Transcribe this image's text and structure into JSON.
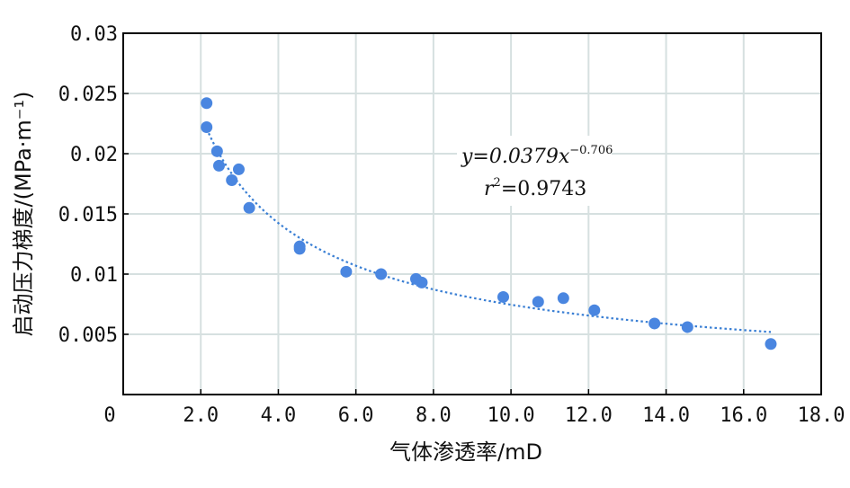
{
  "chart_data": {
    "type": "scatter",
    "xlabel": "气体渗透率/mD",
    "ylabel": "启动压力梯度/(MPa·m⁻¹)",
    "xlim": [
      0,
      18
    ],
    "ylim": [
      0,
      0.03
    ],
    "xticks": [
      {
        "value": 0,
        "label": "0"
      },
      {
        "value": 2,
        "label": "2.0"
      },
      {
        "value": 4,
        "label": "4.0"
      },
      {
        "value": 6,
        "label": "6.0"
      },
      {
        "value": 8,
        "label": "8.0"
      },
      {
        "value": 10,
        "label": "10.0"
      },
      {
        "value": 12,
        "label": "12.0"
      },
      {
        "value": 14,
        "label": "14.0"
      },
      {
        "value": 16,
        "label": "16.0"
      },
      {
        "value": 18,
        "label": "18.0"
      }
    ],
    "yticks": [
      {
        "value": 0.005,
        "label": "0.005"
      },
      {
        "value": 0.01,
        "label": "0.01"
      },
      {
        "value": 0.015,
        "label": "0.015"
      },
      {
        "value": 0.02,
        "label": "0.02"
      },
      {
        "value": 0.025,
        "label": "0.025"
      },
      {
        "value": 0.03,
        "label": "0.03"
      }
    ],
    "grid": true,
    "marker_color": "#4a86e0",
    "trendline_color": "#3a7fd4",
    "points": [
      {
        "x": 2.15,
        "y": 0.0242
      },
      {
        "x": 2.15,
        "y": 0.0222
      },
      {
        "x": 2.42,
        "y": 0.0202
      },
      {
        "x": 2.47,
        "y": 0.019
      },
      {
        "x": 2.8,
        "y": 0.0178
      },
      {
        "x": 2.98,
        "y": 0.0187
      },
      {
        "x": 3.25,
        "y": 0.0155
      },
      {
        "x": 4.55,
        "y": 0.0121
      },
      {
        "x": 4.55,
        "y": 0.0123
      },
      {
        "x": 5.75,
        "y": 0.0102
      },
      {
        "x": 6.65,
        "y": 0.01
      },
      {
        "x": 7.55,
        "y": 0.0096
      },
      {
        "x": 7.7,
        "y": 0.0093
      },
      {
        "x": 9.8,
        "y": 0.0081
      },
      {
        "x": 10.7,
        "y": 0.0077
      },
      {
        "x": 11.35,
        "y": 0.008
      },
      {
        "x": 12.15,
        "y": 0.007
      },
      {
        "x": 13.7,
        "y": 0.0059
      },
      {
        "x": 14.55,
        "y": 0.0056
      },
      {
        "x": 16.7,
        "y": 0.0042
      }
    ],
    "trendline": {
      "type": "power",
      "coefficient": 0.0379,
      "exponent": -0.706,
      "x_range": [
        2.1,
        16.7
      ],
      "equation_prefix": "y=0.0379x",
      "equation_exponent": "−0.706",
      "r2_prefix": "r",
      "r2_exponent": "2",
      "r2_value": "=0.9743"
    }
  }
}
